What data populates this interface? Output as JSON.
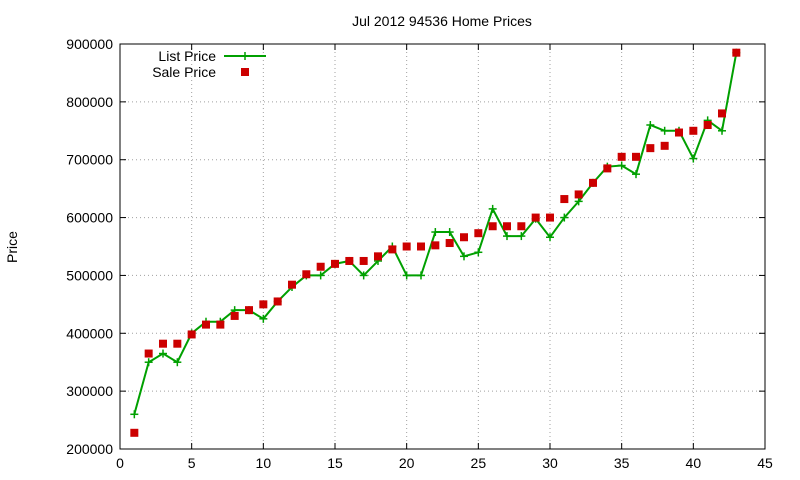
{
  "chart_data": {
    "type": "line",
    "title": "Jul 2012 94536 Home Prices",
    "xlabel": "",
    "ylabel": "Price",
    "xlim": [
      0,
      45
    ],
    "ylim": [
      200000,
      900000
    ],
    "xticks": [
      0,
      5,
      10,
      15,
      20,
      25,
      30,
      35,
      40,
      45
    ],
    "yticks": [
      200000,
      300000,
      400000,
      500000,
      600000,
      700000,
      800000,
      900000
    ],
    "grid": true,
    "legend_position": "top-left",
    "series": [
      {
        "name": "List Price",
        "style": "line-plus",
        "color": "#00a000",
        "x": [
          1,
          2,
          3,
          4,
          5,
          6,
          7,
          8,
          9,
          10,
          11,
          12,
          13,
          14,
          15,
          16,
          17,
          18,
          19,
          20,
          21,
          22,
          23,
          24,
          25,
          26,
          27,
          28,
          29,
          30,
          31,
          32,
          33,
          34,
          35,
          36,
          37,
          38,
          39,
          40,
          41,
          42,
          43
        ],
        "y": [
          260000,
          350000,
          365000,
          350000,
          400000,
          420000,
          420000,
          440000,
          440000,
          425000,
          455000,
          480000,
          500000,
          500000,
          520000,
          525000,
          500000,
          525000,
          550000,
          500000,
          500000,
          575000,
          575000,
          533000,
          540000,
          615000,
          568000,
          568000,
          598000,
          566000,
          600000,
          628000,
          660000,
          688000,
          690000,
          675000,
          760000,
          750000,
          750000,
          702000,
          768000,
          750000,
          885000
        ]
      },
      {
        "name": "Sale Price",
        "style": "points-square",
        "color": "#cc0000",
        "x": [
          1,
          2,
          3,
          4,
          5,
          6,
          7,
          8,
          9,
          10,
          11,
          12,
          13,
          14,
          15,
          16,
          17,
          18,
          19,
          20,
          21,
          22,
          23,
          24,
          25,
          26,
          27,
          28,
          29,
          30,
          31,
          32,
          33,
          34,
          35,
          36,
          37,
          38,
          39,
          40,
          41,
          42,
          43
        ],
        "y": [
          228000,
          365000,
          382000,
          382000,
          398000,
          415000,
          415000,
          430000,
          440000,
          450000,
          455000,
          484000,
          502000,
          515000,
          520000,
          525000,
          525000,
          533000,
          545000,
          550000,
          550000,
          552000,
          556000,
          566000,
          573000,
          585000,
          585000,
          585000,
          600000,
          600000,
          632000,
          640000,
          660000,
          685000,
          705000,
          705000,
          720000,
          724000,
          747000,
          750000,
          760000,
          780000,
          885000
        ]
      }
    ]
  }
}
